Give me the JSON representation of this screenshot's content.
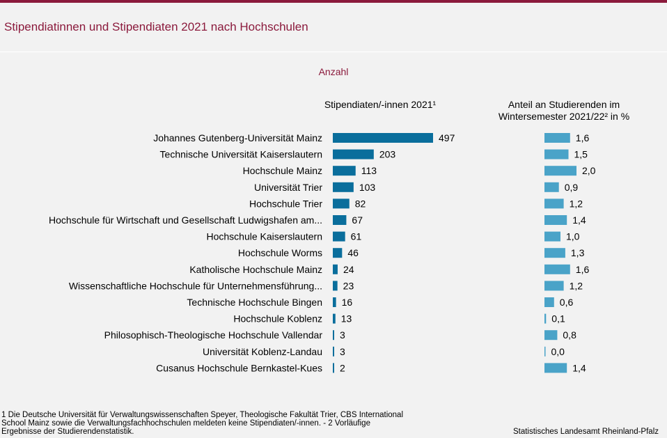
{
  "title": "Stipendiatinnen und Stipendiaten 2021 nach Hochschulen",
  "subtitle": "Anzahl",
  "footnote": " 1 Die Deutsche Universität für Verwaltungswissenschaften  Speyer, Theologische  Fakultät Trier, CBS International  School Mainz sowie die Verwaltungsfachhochschulen  meldeten keine Stipendiaten/-innen.  - 2 Vorläufige Ergebnisse der Studierendenstatistik.",
  "source": "Statistisches Landesamt  Rheinland-Pfalz",
  "colors": {
    "accent": "#8b1a3c",
    "bar_primary": "#0a6e9c",
    "bar_secondary": "#4aa3c8",
    "background": "#f2f2f2"
  },
  "chart_data": [
    {
      "type": "bar",
      "orientation": "horizontal",
      "title": "Stipendiaten/-innen 2021¹",
      "categories": [
        "Johannes Gutenberg-Universität Mainz",
        "Technische Universität Kaiserslautern",
        "Hochschule Mainz",
        "Universität Trier",
        "Hochschule Trier",
        "Hochschule für Wirtschaft und Gesellschaft Ludwigshafen am...",
        "Hochschule Kaiserslautern",
        "Hochschule Worms",
        "Katholische Hochschule Mainz",
        "Wissenschaftliche Hochschule für Unternehmensführung...",
        "Technische Hochschule Bingen",
        "Hochschule Koblenz",
        "Philosophisch-Theologische Hochschule Vallendar",
        "Universität Koblenz-Landau",
        "Cusanus Hochschule Bernkastel-Kues"
      ],
      "values": [
        497,
        203,
        113,
        103,
        82,
        67,
        61,
        46,
        24,
        23,
        16,
        13,
        3,
        3,
        2
      ],
      "value_labels": [
        "497",
        "203",
        "113",
        "103",
        "82",
        "67",
        "61",
        "46",
        "24",
        "23",
        "16",
        "13",
        "3",
        "3",
        "2"
      ],
      "xlim": [
        0,
        497
      ]
    },
    {
      "type": "bar",
      "orientation": "horizontal",
      "title": "Anteil an Studierenden im Wintersemester 2021/22² in %",
      "categories": [
        "Johannes Gutenberg-Universität Mainz",
        "Technische Universität Kaiserslautern",
        "Hochschule Mainz",
        "Universität Trier",
        "Hochschule Trier",
        "Hochschule für Wirtschaft und Gesellschaft Ludwigshafen am...",
        "Hochschule Kaiserslautern",
        "Hochschule Worms",
        "Katholische Hochschule Mainz",
        "Wissenschaftliche Hochschule für Unternehmensführung...",
        "Technische Hochschule Bingen",
        "Hochschule Koblenz",
        "Philosophisch-Theologische Hochschule Vallendar",
        "Universität Koblenz-Landau",
        "Cusanus Hochschule Bernkastel-Kues"
      ],
      "values": [
        1.6,
        1.5,
        2.0,
        0.9,
        1.2,
        1.4,
        1.0,
        1.3,
        1.6,
        1.2,
        0.6,
        0.1,
        0.8,
        0.0,
        1.4
      ],
      "value_labels": [
        "1,6",
        "1,5",
        "2,0",
        "0,9",
        "1,2",
        "1,4",
        "1,0",
        "1,3",
        "1,6",
        "1,2",
        "0,6",
        "0,1",
        "0,8",
        "0,0",
        "1,4"
      ],
      "xlim": [
        0,
        2.0
      ]
    }
  ]
}
